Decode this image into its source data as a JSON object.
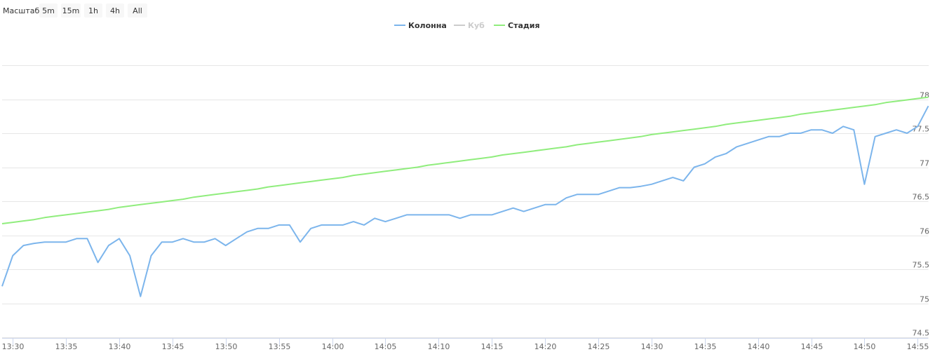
{
  "chart_data": {
    "type": "line",
    "range_selector": {
      "label": "Масштаб",
      "buttons": [
        "5m",
        "15m",
        "1h",
        "4h",
        "All"
      ]
    },
    "x": [
      "13:29",
      "13:30",
      "13:31",
      "13:32",
      "13:33",
      "13:34",
      "13:35",
      "13:36",
      "13:37",
      "13:38",
      "13:39",
      "13:40",
      "13:41",
      "13:42",
      "13:43",
      "13:44",
      "13:45",
      "13:46",
      "13:47",
      "13:48",
      "13:49",
      "13:50",
      "13:51",
      "13:52",
      "13:53",
      "13:54",
      "13:55",
      "13:56",
      "13:57",
      "13:58",
      "13:59",
      "14:00",
      "14:01",
      "14:02",
      "14:03",
      "14:04",
      "14:05",
      "14:06",
      "14:07",
      "14:08",
      "14:09",
      "14:10",
      "14:11",
      "14:12",
      "14:13",
      "14:14",
      "14:15",
      "14:16",
      "14:17",
      "14:18",
      "14:19",
      "14:20",
      "14:21",
      "14:22",
      "14:23",
      "14:24",
      "14:25",
      "14:26",
      "14:27",
      "14:28",
      "14:29",
      "14:30",
      "14:31",
      "14:32",
      "14:33",
      "14:34",
      "14:35",
      "14:36",
      "14:37",
      "14:38",
      "14:39",
      "14:40",
      "14:41",
      "14:42",
      "14:43",
      "14:44",
      "14:45",
      "14:46",
      "14:47",
      "14:48",
      "14:49",
      "14:50",
      "14:51",
      "14:52",
      "14:53",
      "14:54",
      "14:55",
      "14:56"
    ],
    "series": [
      {
        "name": "Колонна",
        "color": "#7cb5ec",
        "visible": true,
        "values": [
          75.25,
          75.7,
          75.85,
          75.88,
          75.9,
          75.9,
          75.9,
          75.95,
          75.95,
          75.6,
          75.85,
          75.95,
          75.7,
          75.1,
          75.7,
          75.9,
          75.9,
          75.95,
          75.9,
          75.9,
          75.95,
          75.85,
          75.95,
          76.05,
          76.1,
          76.1,
          76.15,
          76.15,
          75.9,
          76.1,
          76.15,
          76.15,
          76.15,
          76.2,
          76.15,
          76.25,
          76.2,
          76.25,
          76.3,
          76.3,
          76.3,
          76.3,
          76.3,
          76.25,
          76.3,
          76.3,
          76.3,
          76.35,
          76.4,
          76.35,
          76.4,
          76.45,
          76.45,
          76.55,
          76.6,
          76.6,
          76.6,
          76.65,
          76.7,
          76.7,
          76.72,
          76.75,
          76.8,
          76.85,
          76.8,
          77.0,
          77.05,
          77.15,
          77.2,
          77.3,
          77.35,
          77.4,
          77.45,
          77.45,
          77.5,
          77.5,
          77.55,
          77.55,
          77.5,
          77.6,
          77.55,
          76.75,
          77.45,
          77.5,
          77.55,
          77.5,
          77.6,
          77.9
        ]
      },
      {
        "name": "Куб",
        "color": "#cccccc",
        "visible": false,
        "values": [
          null,
          null,
          null,
          null,
          null,
          null,
          null,
          null,
          null,
          null,
          null,
          null,
          null,
          null,
          null,
          null,
          null,
          null,
          null,
          null,
          null,
          null,
          null,
          null,
          null,
          null,
          null,
          null,
          null,
          null,
          null,
          null,
          null,
          null,
          null,
          null,
          null,
          null,
          null,
          null,
          null,
          null,
          null,
          null,
          null,
          null,
          null,
          null,
          null,
          null,
          null,
          null,
          null,
          null,
          null,
          null,
          null,
          null,
          null,
          null,
          null,
          null,
          null,
          null,
          null,
          null,
          null,
          null,
          null,
          null,
          null,
          null,
          null,
          null,
          null,
          null,
          null,
          null,
          null,
          null,
          null,
          null,
          null,
          null,
          null,
          null,
          null,
          null
        ]
      },
      {
        "name": "Стадия",
        "color": "#90ed7d",
        "visible": true,
        "values": [
          76.17,
          76.19,
          76.21,
          76.23,
          76.26,
          76.28,
          76.3,
          76.32,
          76.34,
          76.36,
          76.38,
          76.41,
          76.43,
          76.45,
          76.47,
          76.49,
          76.51,
          76.53,
          76.56,
          76.58,
          76.6,
          76.62,
          76.64,
          76.66,
          76.68,
          76.71,
          76.73,
          76.75,
          76.77,
          76.79,
          76.81,
          76.83,
          76.85,
          76.88,
          76.9,
          76.92,
          76.94,
          76.96,
          76.98,
          77.0,
          77.03,
          77.05,
          77.07,
          77.09,
          77.11,
          77.13,
          77.15,
          77.18,
          77.2,
          77.22,
          77.24,
          77.26,
          77.28,
          77.3,
          77.33,
          77.35,
          77.37,
          77.39,
          77.41,
          77.43,
          77.45,
          77.48,
          77.5,
          77.52,
          77.54,
          77.56,
          77.58,
          77.6,
          77.63,
          77.65,
          77.67,
          77.69,
          77.71,
          77.73,
          77.75,
          77.78,
          77.8,
          77.82,
          77.84,
          77.86,
          77.88,
          77.9,
          77.92,
          77.95,
          77.97,
          77.99,
          78.01,
          78.03
        ]
      }
    ],
    "xlim": [
      "13:29",
      "14:56"
    ],
    "xticks": [
      "13:30",
      "13:35",
      "13:40",
      "13:45",
      "13:50",
      "13:55",
      "14:00",
      "14:05",
      "14:10",
      "14:15",
      "14:20",
      "14:25",
      "14:30",
      "14:35",
      "14:40",
      "14:45",
      "14:50",
      "14:55"
    ],
    "ylim": [
      74.5,
      78.5
    ],
    "yticks": [
      74.5,
      75,
      75.5,
      76,
      76.5,
      77,
      77.5,
      78
    ],
    "grid": true
  }
}
